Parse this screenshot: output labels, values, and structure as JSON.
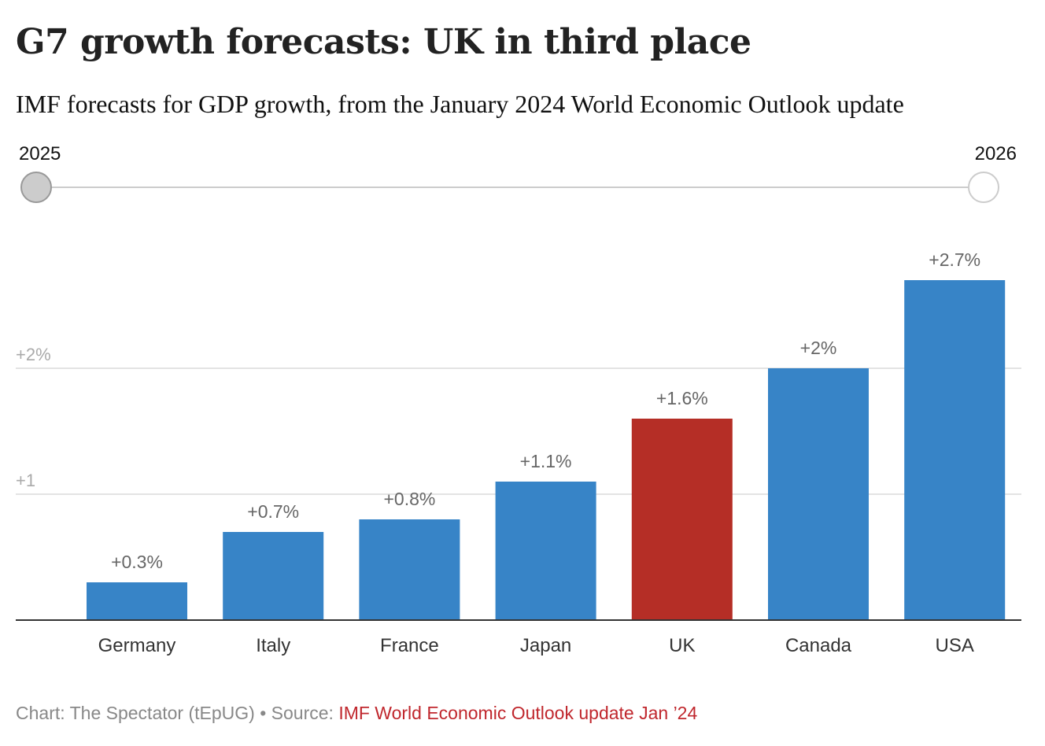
{
  "header": {
    "title": "G7 growth forecasts: UK in third place",
    "subtitle": "IMF forecasts for GDP growth, from the January 2024 World Economic Outlook update"
  },
  "year_slider": {
    "start_label": "2025",
    "end_label": "2026",
    "selected": "2025"
  },
  "footer": {
    "chart_credit": "Chart: The Spectator (tEpUG)",
    "separator": " • ",
    "source_prefix": "Source: ",
    "source_link": "IMF World Economic Outlook update Jan ’24"
  },
  "colors": {
    "bar_default": "#3784c7",
    "bar_highlight": "#b52e26",
    "source_link": "#c0272d"
  },
  "chart_data": {
    "type": "bar",
    "title": "G7 growth forecasts: UK in third place",
    "subtitle": "IMF forecasts for GDP growth, from the January 2024 World Economic Outlook update",
    "xlabel": "",
    "ylabel": "",
    "categories": [
      "Germany",
      "Italy",
      "France",
      "Japan",
      "UK",
      "Canada",
      "USA"
    ],
    "values": [
      0.3,
      0.7,
      0.8,
      1.1,
      1.6,
      2.0,
      2.7
    ],
    "data_labels": [
      "+0.3%",
      "+0.7%",
      "+0.8%",
      "+1.1%",
      "+1.6%",
      "+2%",
      "+2.7%"
    ],
    "highlight": "UK",
    "yticks": [
      1,
      2
    ],
    "ytick_labels": [
      "+1",
      "+2%"
    ],
    "ylim": [
      0,
      2.8
    ],
    "grid": true,
    "legend": "none"
  }
}
